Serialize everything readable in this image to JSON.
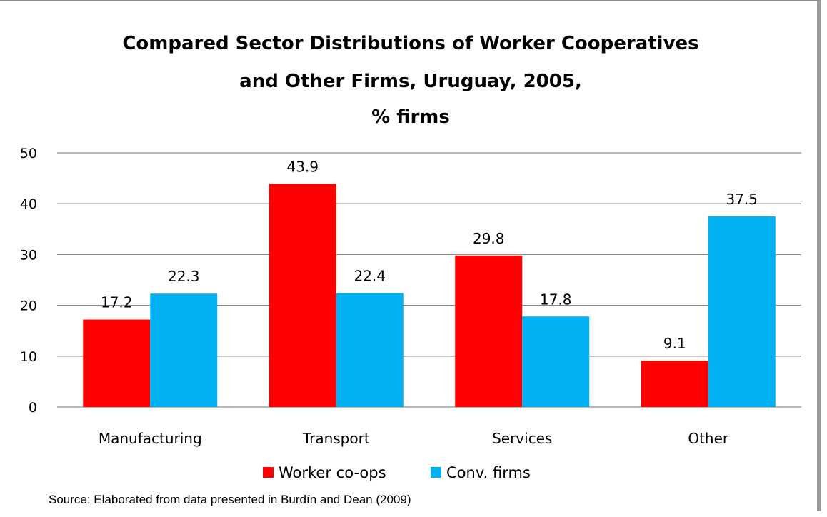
{
  "chart_data": {
    "type": "bar",
    "title": [
      "Compared Sector Distributions of Worker Cooperatives",
      "and Other Firms, Uruguay, 2005,",
      "% firms"
    ],
    "categories": [
      "Manufacturing",
      "Transport",
      "Services",
      "Other"
    ],
    "series": [
      {
        "name": "Worker co-ops",
        "values": [
          17.2,
          43.9,
          29.8,
          9.1
        ],
        "labels": [
          "17.2",
          "43.9",
          "29.8",
          "9.1"
        ],
        "color": "#ff0000"
      },
      {
        "name": "Conv. firms",
        "values": [
          22.3,
          22.4,
          17.8,
          37.5
        ],
        "labels": [
          "22.3",
          "22.4",
          "17.8",
          "37.5"
        ],
        "color": "#00b0f0"
      }
    ],
    "ylim": [
      0,
      50
    ],
    "yticks": [
      "0",
      "10",
      "20",
      "30",
      "40",
      "50"
    ],
    "ytick_values": [
      0,
      10,
      20,
      30,
      40,
      50
    ],
    "grid": true,
    "legend": "bottom",
    "source": "Source: Elaborated from data presented in Burdín and Dean (2009)"
  }
}
